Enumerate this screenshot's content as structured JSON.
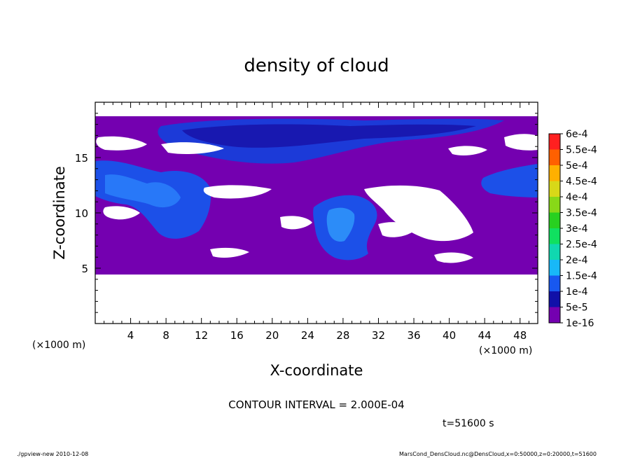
{
  "chart_data": {
    "type": "heatmap",
    "title": "density of cloud",
    "xlabel": "X-coordinate",
    "ylabel": "Z-coordinate",
    "x_unit_left": "(×1000 m)",
    "x_unit_right": "(×1000 m)",
    "xlim": [
      0,
      50
    ],
    "ylim": [
      0,
      20
    ],
    "x_ticks": [
      4,
      8,
      12,
      16,
      20,
      24,
      28,
      32,
      36,
      40,
      44,
      48
    ],
    "y_ticks": [
      5,
      10,
      15
    ],
    "colorbar": {
      "levels": [
        "1e-16",
        "5e-5",
        "1e-4",
        "1.5e-4",
        "2e-4",
        "2.5e-4",
        "3e-4",
        "3.5e-4",
        "4e-4",
        "4.5e-4",
        "5e-4",
        "5.5e-4",
        "6e-4"
      ],
      "colors": [
        "#7400b0",
        "#1010a8",
        "#1858f0",
        "#18b8f8",
        "#10d8b0",
        "#10e060",
        "#28d020",
        "#88d818",
        "#d8d818",
        "#ffb000",
        "#ff6000",
        "#ff2020",
        "#ff8888"
      ]
    },
    "contour_interval": "CONTOUR INTERVAL = 2.000E-04",
    "time": "t=51600 s"
  },
  "footer": {
    "left": "./gpview-new  2010-12-08",
    "right": "MarsCond_DensCloud.nc@DensCloud,x=0:50000,z=0:20000,t=51600"
  }
}
